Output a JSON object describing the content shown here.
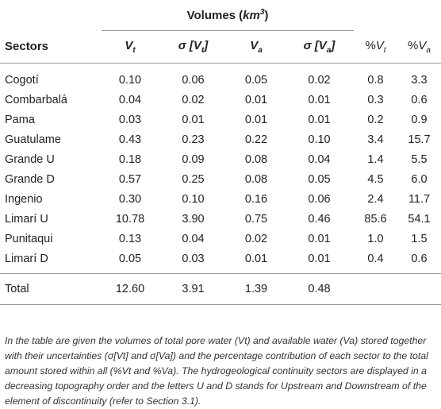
{
  "table": {
    "group_header": "Volumes (km³)",
    "group_header_main": "Volumes (",
    "group_header_unit": "km",
    "group_header_exp": "3",
    "group_header_close": ")",
    "columns": {
      "sectors": "Sectors",
      "vt_sym": "V",
      "vt_sub": "t",
      "svt_pre": "σ [",
      "svt_sym": "V",
      "svt_sub": "t",
      "svt_post": "]",
      "va_sym": "V",
      "va_sub": "a",
      "sva_pre": "σ [",
      "sva_sym": "V",
      "sva_sub": "a",
      "sva_post": "]",
      "pvt_pre": "%",
      "pvt_sym": "V",
      "pvt_sub": "t",
      "pva_pre": "%",
      "pva_sym": "V",
      "pva_sub": "a"
    },
    "rows": [
      {
        "sector": "Cogotí",
        "vt": "0.10",
        "svt": "0.06",
        "va": "0.05",
        "sva": "0.02",
        "pvt": "0.8",
        "pva": "3.3"
      },
      {
        "sector": "Combarbalá",
        "vt": "0.04",
        "svt": "0.02",
        "va": "0.01",
        "sva": "0.01",
        "pvt": "0.3",
        "pva": "0.6"
      },
      {
        "sector": "Pama",
        "vt": "0.03",
        "svt": "0.01",
        "va": "0.01",
        "sva": "0.01",
        "pvt": "0.2",
        "pva": "0.9"
      },
      {
        "sector": "Guatulame",
        "vt": "0.43",
        "svt": "0.23",
        "va": "0.22",
        "sva": "0.10",
        "pvt": "3.4",
        "pva": "15.7"
      },
      {
        "sector": "Grande U",
        "vt": "0.18",
        "svt": "0.09",
        "va": "0.08",
        "sva": "0.04",
        "pvt": "1.4",
        "pva": "5.5"
      },
      {
        "sector": "Grande D",
        "vt": "0.57",
        "svt": "0.25",
        "va": "0.08",
        "sva": "0.05",
        "pvt": "4.5",
        "pva": "6.0"
      },
      {
        "sector": "Ingenio",
        "vt": "0.30",
        "svt": "0.10",
        "va": "0.16",
        "sva": "0.06",
        "pvt": "2.4",
        "pva": "11.7"
      },
      {
        "sector": "Limarí U",
        "vt": "10.78",
        "svt": "3.90",
        "va": "0.75",
        "sva": "0.46",
        "pvt": "85.6",
        "pva": "54.1"
      },
      {
        "sector": "Punitaqui",
        "vt": "0.13",
        "svt": "0.04",
        "va": "0.02",
        "sva": "0.01",
        "pvt": "1.0",
        "pva": "1.5"
      },
      {
        "sector": "Limarí D",
        "vt": "0.05",
        "svt": "0.03",
        "va": "0.01",
        "sva": "0.01",
        "pvt": "0.4",
        "pva": "0.6"
      }
    ],
    "total": {
      "sector": "Total",
      "vt": "12.60",
      "svt": "3.91",
      "va": "1.39",
      "sva": "0.48",
      "pvt": "",
      "pva": ""
    }
  },
  "footnote": "In the table are given the volumes of total pore water (Vt) and available water (Va) stored together with their uncertainties (σ[Vt] and σ[Va]) and the percentage contribution of each sector to the total amount stored within all (%Vt and %Va). The hydrogeological continuity sectors are displayed in a decreasing topography order and the letters U and D stands for Upstream and Downstream of the element of discontinuity (refer to Section 3.1)."
}
